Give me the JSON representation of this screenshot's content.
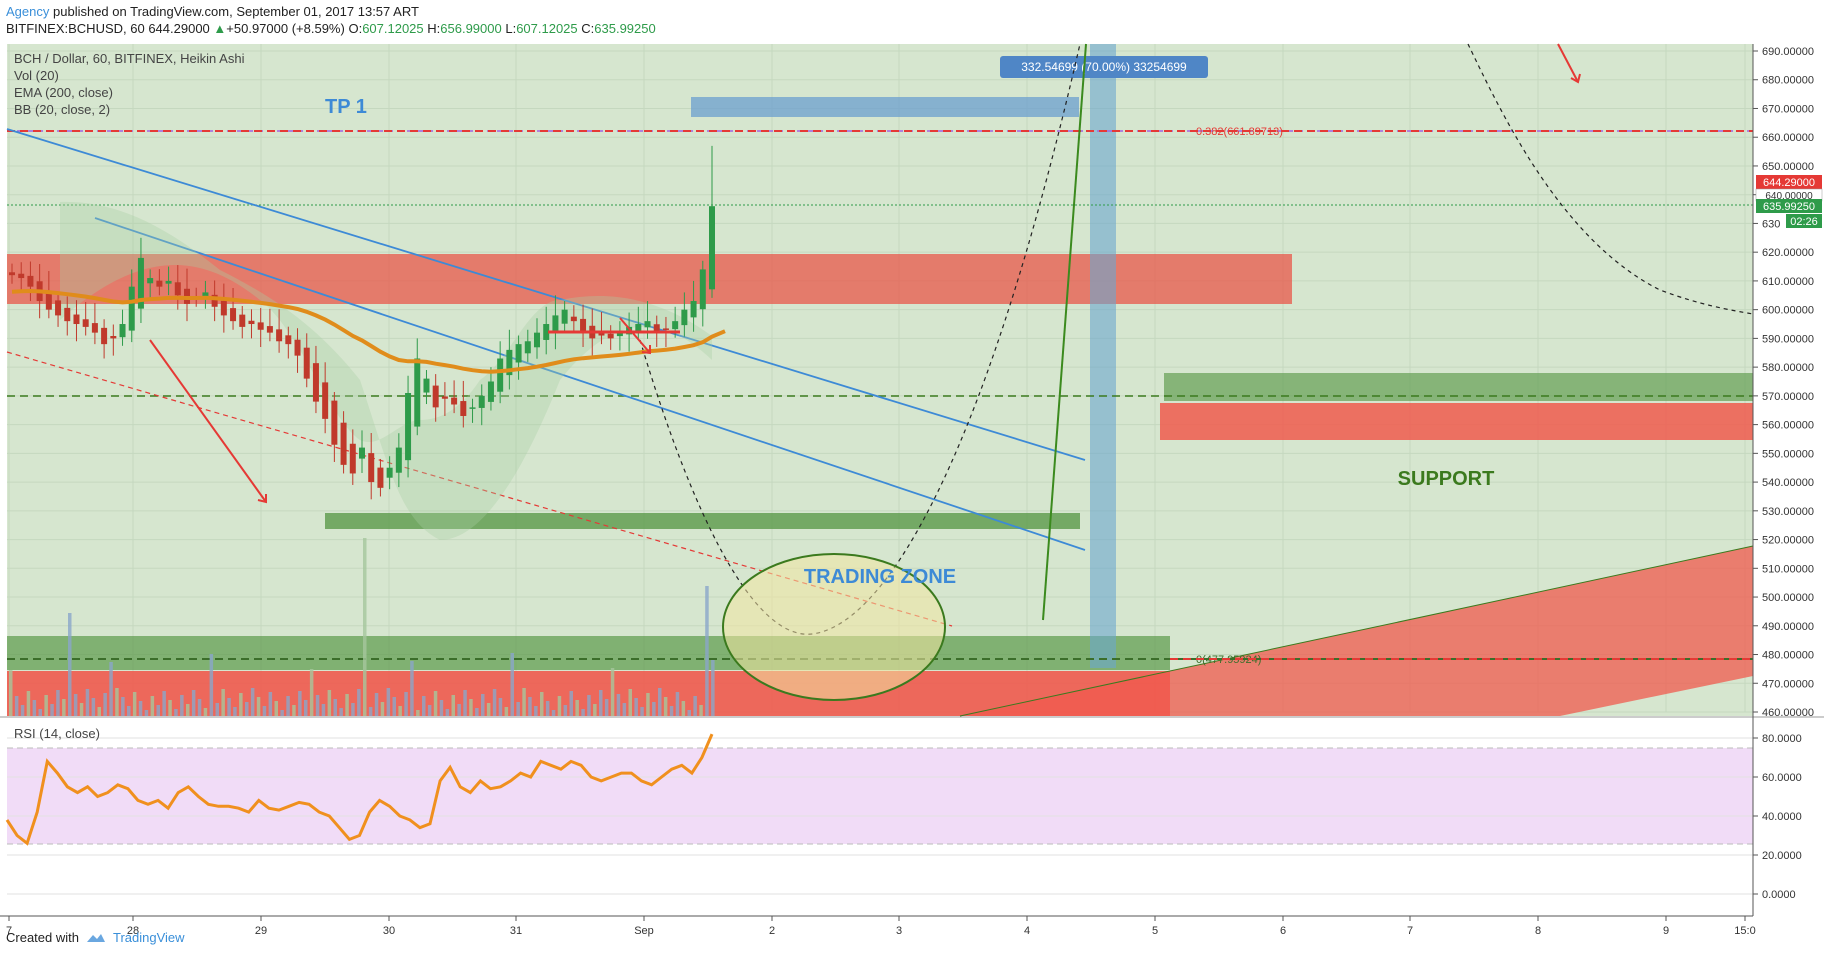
{
  "header": {
    "agency": "Agency",
    "published": "published on TradingView.com, September 01, 2017 13:57 ART",
    "symbol": "BITFINEX:BCHUSD, 60",
    "last": "644.29000",
    "change": "+50.97000 (+8.59%)",
    "o_label": "O:",
    "o": "607.12025",
    "h_label": "H:",
    "h": "656.99000",
    "l_label": "L:",
    "l": "607.12025",
    "c_label": "C:",
    "c": "635.99250"
  },
  "legend": {
    "series": "BCH / Dollar, 60, BITFINEX, Heikin Ashi",
    "vol": "Vol (20)",
    "ema": "EMA (200, close)",
    "bb": "BB (20, close, 2)"
  },
  "rsi_label": "RSI (14, close)",
  "annotations": {
    "tp1": "TP 1",
    "trading_zone": "TRADING ZONE",
    "support": "SUPPORT",
    "measure": "332.54699 (70.00%) 33254699",
    "fib382": "0.382(661.89713)",
    "fib0": "0(477.95924)"
  },
  "price_tags": {
    "last": "644.29000",
    "tag2": "640.00000",
    "close": "635.99250",
    "countdown": "02:26"
  },
  "footer": {
    "created": "Created with",
    "brand": "TradingView"
  },
  "colors": {
    "up": "#2e9b4a",
    "down": "#c0392b",
    "ema": "#e08c1b",
    "red_zone": "#e8574a",
    "green_zone": "#5b9a4a",
    "blue_box": "#5b9bd5",
    "rsi": "#f0901e",
    "tp_text": "#3d8ad6",
    "support_text": "#3b7a1e"
  },
  "chart_data": {
    "type": "candlestick",
    "y_axis": {
      "min": 460,
      "max": 690,
      "step": 10,
      "ticks": [
        "690.00000",
        "680.00000",
        "670.00000",
        "660.00000",
        "650.00000",
        "640.00000",
        "630",
        "620.00000",
        "610.00000",
        "600.00000",
        "590.00000",
        "580.00000",
        "570.00000",
        "560.00000",
        "550.00000",
        "540.00000",
        "530.00000",
        "520.00000",
        "510.00000",
        "500.00000",
        "490.00000",
        "480.00000",
        "470.00000",
        "460.00000"
      ]
    },
    "rsi_axis": {
      "ticks": [
        "80.0000",
        "60.0000",
        "40.0000",
        "20.0000",
        "0.0000"
      ]
    },
    "x_ticks": [
      "7",
      "28",
      "29",
      "30",
      "31",
      "Sep",
      "2",
      "3",
      "4",
      "5",
      "6",
      "7",
      "8",
      "9",
      "15:0"
    ],
    "close_series": [
      612,
      611,
      608,
      603,
      600,
      598,
      596,
      595,
      594,
      592,
      588,
      590,
      595,
      608,
      618,
      611,
      608,
      610,
      605,
      602,
      604,
      606,
      601,
      598,
      596,
      594,
      595,
      593,
      592,
      589,
      588,
      584,
      576,
      568,
      562,
      553,
      546,
      543,
      552,
      540,
      538,
      545,
      552,
      571,
      583,
      576,
      566,
      569,
      567,
      563,
      566,
      570,
      575,
      583,
      586,
      588,
      589,
      592,
      595,
      598,
      600,
      596,
      592,
      590,
      591,
      590,
      592,
      594,
      595,
      596,
      592,
      593,
      596,
      600,
      603,
      614,
      636
    ],
    "rsi_series": [
      38,
      30,
      26,
      42,
      68,
      62,
      55,
      52,
      55,
      50,
      52,
      56,
      54,
      48,
      46,
      48,
      44,
      52,
      55,
      50,
      46,
      45,
      45,
      44,
      42,
      48,
      44,
      43,
      45,
      47,
      46,
      42,
      40,
      34,
      28,
      30,
      42,
      48,
      45,
      40,
      38,
      34,
      36,
      58,
      65,
      55,
      52,
      58,
      54,
      55,
      58,
      62,
      60,
      68,
      66,
      64,
      68,
      66,
      60,
      58,
      60,
      62,
      62,
      58,
      56,
      60,
      64,
      66,
      62,
      70,
      82
    ]
  }
}
